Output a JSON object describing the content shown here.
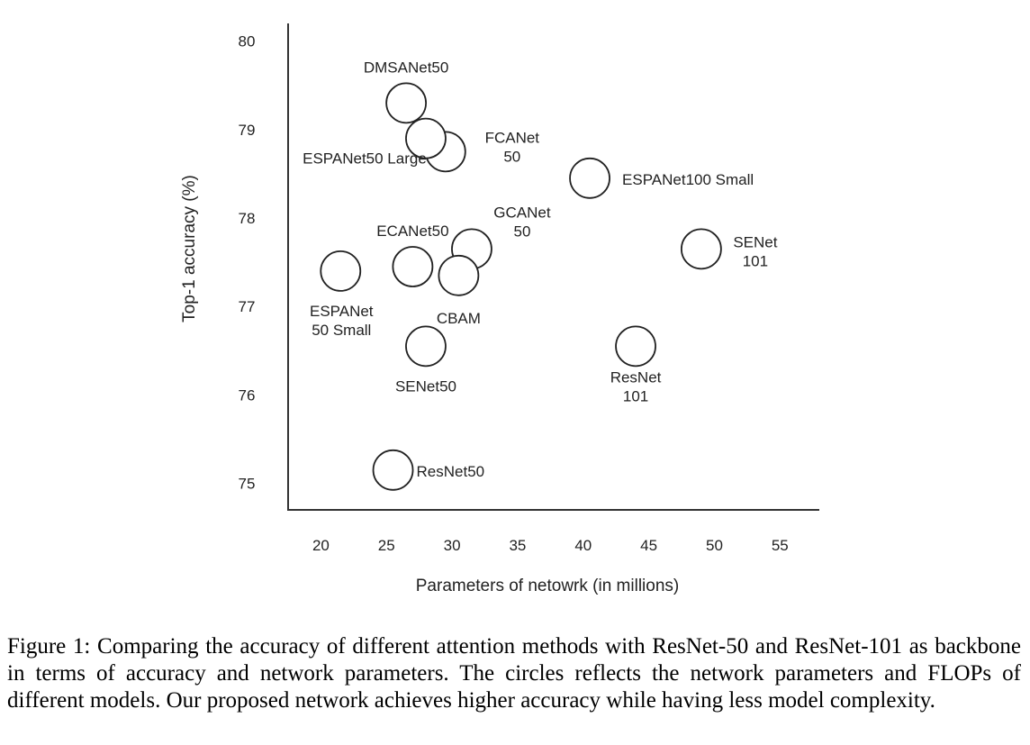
{
  "chart_data": {
    "type": "scatter",
    "xlabel": "Parameters of netowrk (in millions)",
    "ylabel": "Top-1 accuracy (%)",
    "xlim": [
      17.5,
      58
    ],
    "ylim": [
      74.7,
      80.2
    ],
    "x_ticks": [
      "20",
      "25",
      "30",
      "35",
      "40",
      "45",
      "50",
      "55"
    ],
    "y_ticks": [
      "80",
      "79",
      "78",
      "77",
      "76",
      "75"
    ],
    "grid": false,
    "points": [
      {
        "label_lines": [
          "DMSANet50"
        ],
        "x": 26.5,
        "y": 79.3
      },
      {
        "label_lines": [
          "FCANet",
          "50"
        ],
        "x": 29.5,
        "y": 78.75
      },
      {
        "label_lines": [
          "ESPANet50 Large"
        ],
        "x": 28.0,
        "y": 78.9
      },
      {
        "label_lines": [
          "ESPANet100 Small"
        ],
        "x": 40.5,
        "y": 78.45
      },
      {
        "label_lines": [
          "GCANet",
          "50"
        ],
        "x": 31.5,
        "y": 77.65
      },
      {
        "label_lines": [
          "ECANet50"
        ],
        "x": 27.0,
        "y": 77.45
      },
      {
        "label_lines": [
          "SENet",
          "101"
        ],
        "x": 49.0,
        "y": 77.65
      },
      {
        "label_lines": [
          "ESPANet",
          "50 Small"
        ],
        "x": 21.5,
        "y": 77.4
      },
      {
        "label_lines": [
          "CBAM"
        ],
        "x": 30.5,
        "y": 77.35
      },
      {
        "label_lines": [
          "SENet50"
        ],
        "x": 28.0,
        "y": 76.55
      },
      {
        "label_lines": [
          "ResNet",
          "101"
        ],
        "x": 44.0,
        "y": 76.55
      },
      {
        "label_lines": [
          "ResNet50"
        ],
        "x": 25.5,
        "y": 75.15
      }
    ]
  },
  "caption": "Figure 1: Comparing the accuracy of different attention methods with ResNet-50 and ResNet-101 as backbone in terms of accuracy and network parameters. The circles reflects the network parameters and FLOPs of different models. Our proposed network achieves higher accuracy while having less model complexity."
}
